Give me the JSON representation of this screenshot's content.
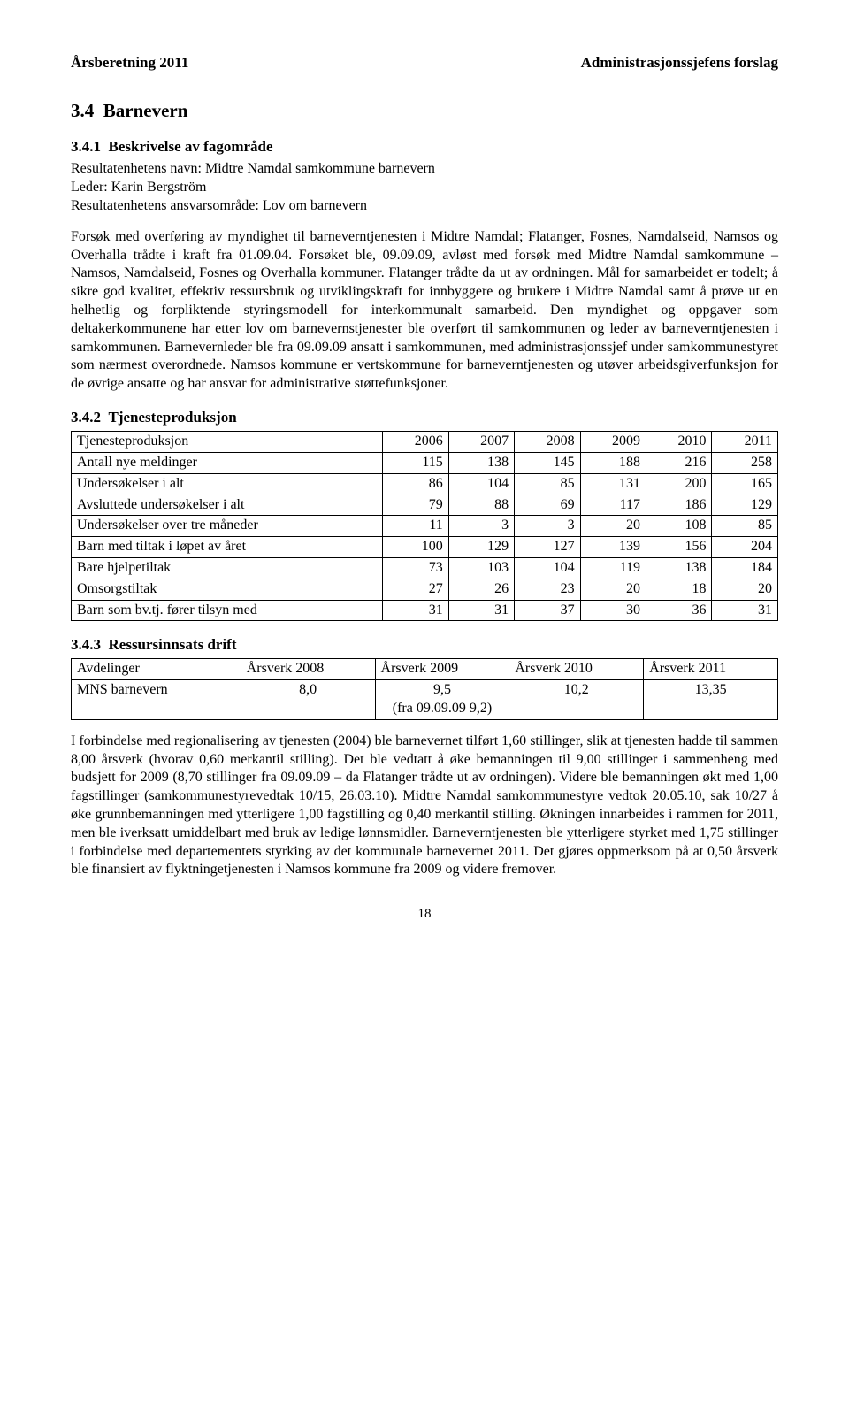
{
  "header": {
    "left": "Årsberetning 2011",
    "right": "Administrasjonssjefens forslag"
  },
  "section_main": {
    "number": "3.4",
    "title": "Barnevern"
  },
  "sub1": {
    "number": "3.4.1",
    "title": "Beskrivelse av fagområde",
    "line1": "Resultatenhetens navn: Midtre Namdal samkommune barnevern",
    "line2": "Leder: Karin Bergström",
    "line3": "Resultatenhetens ansvarsområde: Lov om barnevern",
    "body": "Forsøk med overføring av myndighet til barneverntjenesten i Midtre Namdal; Flatanger, Fosnes, Namdalseid, Namsos og Overhalla trådte i kraft fra 01.09.04. Forsøket ble, 09.09.09, avløst med forsøk med Midtre Namdal samkommune – Namsos, Namdalseid, Fosnes og Overhalla kommuner. Flatanger trådte da ut av ordningen. Mål for samarbeidet er todelt; å sikre god kvalitet, effektiv ressursbruk og utviklingskraft for innbyggere og brukere i Midtre Namdal samt å prøve ut en helhetlig og forpliktende styringsmodell for interkommunalt samarbeid. Den myndighet og oppgaver som deltakerkommunene har etter lov om barnevernstjenester ble overført til samkommunen og leder av barneverntjenesten i samkommunen. Barnevernleder ble fra 09.09.09 ansatt i samkommunen, med administrasjonssjef under samkommunestyret som nærmest overordnede. Namsos kommune er vertskommune for barneverntjenesten og utøver arbeidsgiverfunksjon for de øvrige ansatte og har ansvar for administrative støttefunksjoner."
  },
  "sub2": {
    "number": "3.4.2",
    "title": "Tjenesteproduksjon",
    "table": {
      "type": "table",
      "columns": [
        "Tjenesteproduksjon",
        "2006",
        "2007",
        "2008",
        "2009",
        "2010",
        "2011"
      ],
      "col_widths": [
        "44%",
        "9.3%",
        "9.3%",
        "9.3%",
        "9.3%",
        "9.3%",
        "9.3%"
      ],
      "rows": [
        [
          "Antall nye meldinger",
          "115",
          "138",
          "145",
          "188",
          "216",
          "258"
        ],
        [
          "Undersøkelser i alt",
          "86",
          "104",
          "85",
          "131",
          "200",
          "165"
        ],
        [
          "Avsluttede undersøkelser i alt",
          "79",
          "88",
          "69",
          "117",
          "186",
          "129"
        ],
        [
          "Undersøkelser over tre måneder",
          "11",
          "3",
          "3",
          "20",
          "108",
          "85"
        ],
        [
          "Barn med tiltak i løpet av året",
          "100",
          "129",
          "127",
          "139",
          "156",
          "204"
        ],
        [
          "Bare hjelpetiltak",
          "73",
          "103",
          "104",
          "119",
          "138",
          "184"
        ],
        [
          "Omsorgstiltak",
          "27",
          "26",
          "23",
          "20",
          "18",
          "20"
        ],
        [
          "Barn som bv.tj. fører tilsyn med",
          "31",
          "31",
          "37",
          "30",
          "36",
          "31"
        ]
      ]
    }
  },
  "sub3": {
    "number": "3.4.3",
    "title": "Ressursinnsats drift",
    "table": {
      "type": "table",
      "columns": [
        "Avdelinger",
        "Årsverk 2008",
        "Årsverk 2009",
        "Årsverk 2010",
        "Årsverk 2011"
      ],
      "col_widths": [
        "24%",
        "19%",
        "19%",
        "19%",
        "19%"
      ],
      "rows": [
        [
          "MNS barnevern",
          "8,0",
          "9,5\n(fra 09.09.09 9,2)",
          "10,2",
          "13,35"
        ]
      ]
    },
    "body": "I forbindelse med regionalisering av tjenesten (2004) ble barnevernet tilført 1,60 stillinger, slik at tjenesten hadde til sammen 8,00 årsverk (hvorav 0,60 merkantil stilling). Det ble vedtatt å øke bemanningen til 9,00 stillinger i sammenheng med budsjett for 2009 (8,70 stillinger fra 09.09.09 – da Flatanger trådte ut av ordningen). Videre ble bemanningen økt med 1,00 fagstillinger (samkommunestyrevedtak 10/15, 26.03.10). Midtre Namdal samkommunestyre vedtok 20.05.10, sak 10/27 å øke grunnbemanningen med ytterligere 1,00 fagstilling og 0,40 merkantil stilling. Økningen innarbeides i rammen for 2011, men ble iverksatt umiddelbart med bruk av ledige lønnsmidler. Barneverntjenesten ble ytterligere styrket med 1,75 stillinger i forbindelse med departementets styrking av det kommunale barnevernet 2011. Det gjøres oppmerksom på at 0,50 årsverk ble finansiert av flyktningetjenesten i Namsos kommune fra 2009 og videre fremover."
  },
  "page_number": "18"
}
